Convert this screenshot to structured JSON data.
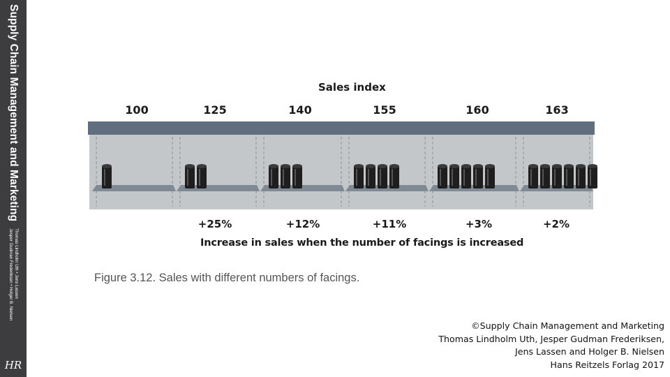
{
  "spine": {
    "title": "Supply Chain Management and Marketing",
    "authors_line1": "Thomas Lindholm Uth • Jens Lassen",
    "authors_line2": "Jesper Gudman Frederiksen • Holger B. Nielsen",
    "logo": "HR"
  },
  "figure": {
    "title": "Sales index",
    "caption": "Increase in sales when the number of facings is increased",
    "figure_caption": "Figure 3.12. Sales with different numbers of facings.",
    "colors": {
      "shelf_top": "#5f6f7f",
      "shelf_back": "#c4c7ca",
      "shelf_ledge": "#7f8a94",
      "can": "#1e1e1e"
    }
  },
  "chart_data": {
    "type": "table",
    "categories": [
      "1 facing",
      "2 facings",
      "3 facings",
      "4 facings",
      "5 facings",
      "6 facings"
    ],
    "facings": [
      1,
      2,
      3,
      4,
      5,
      6
    ],
    "sales_index": [
      "100",
      "125",
      "140",
      "155",
      "160",
      "163"
    ],
    "increase": [
      "+25%",
      "+12%",
      "+11%",
      "+3%",
      "+2%"
    ]
  },
  "copyright": {
    "line1": "©Supply Chain Management and Marketing",
    "line2": "Thomas Lindholm Uth, Jesper Gudman Frederiksen,",
    "line3": "Jens Lassen and Holger B. Nielsen",
    "line4": "Hans Reitzels Forlag 2017"
  }
}
